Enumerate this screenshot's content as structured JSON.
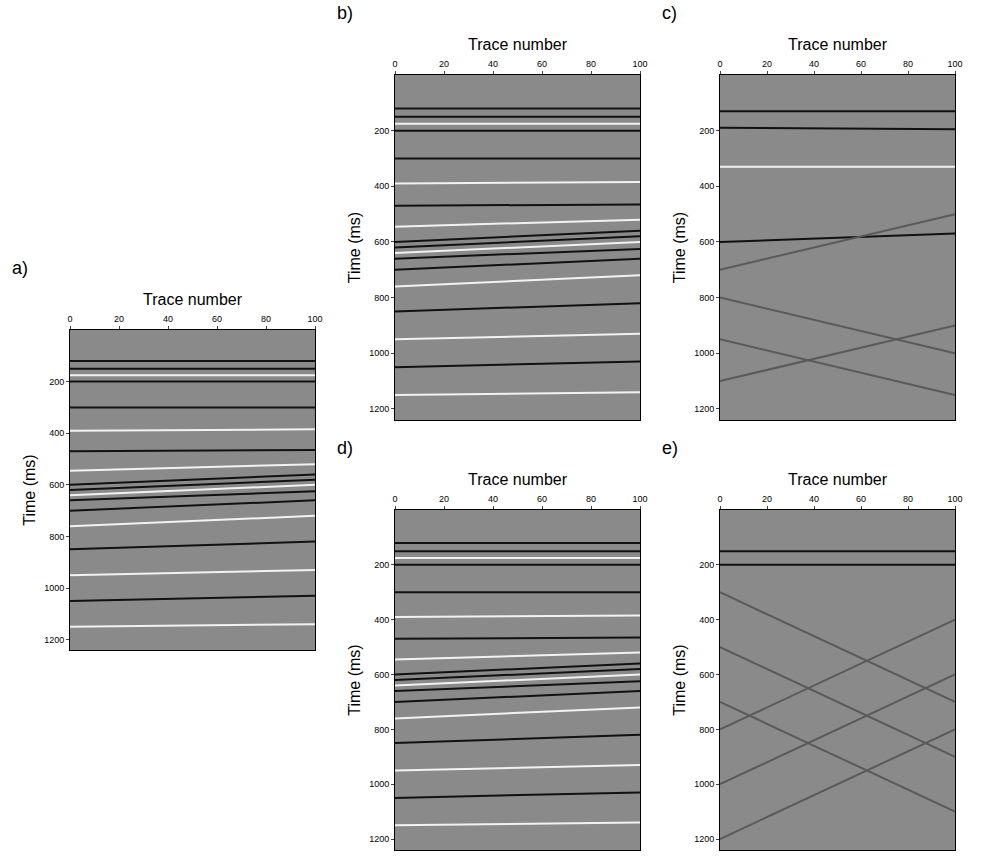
{
  "chart_data": [
    {
      "type": "line",
      "title": "a)",
      "xlabel": "Trace number",
      "ylabel": "Time (ms)",
      "xlim": [
        0,
        100
      ],
      "ylim": [
        1240,
        0
      ],
      "xticks": [
        0,
        20,
        40,
        60,
        80,
        100
      ],
      "yticks": [
        200,
        400,
        600,
        800,
        1000,
        1200
      ],
      "grid": false,
      "x": [
        0,
        100
      ],
      "series": [
        {
          "color": "#111111",
          "values": [
            120,
            120
          ]
        },
        {
          "color": "#111111",
          "values": [
            150,
            150
          ]
        },
        {
          "color": "#f2f2f2",
          "values": [
            175,
            175
          ]
        },
        {
          "color": "#111111",
          "values": [
            200,
            200
          ]
        },
        {
          "color": "#111111",
          "values": [
            300,
            300
          ]
        },
        {
          "color": "#f2f2f2",
          "values": [
            390,
            385
          ]
        },
        {
          "color": "#111111",
          "values": [
            470,
            465
          ]
        },
        {
          "color": "#f2f2f2",
          "values": [
            545,
            520
          ]
        },
        {
          "color": "#111111",
          "values": [
            600,
            560
          ]
        },
        {
          "color": "#111111",
          "values": [
            620,
            580
          ]
        },
        {
          "color": "#f2f2f2",
          "values": [
            640,
            600
          ]
        },
        {
          "color": "#111111",
          "values": [
            660,
            625
          ]
        },
        {
          "color": "#111111",
          "values": [
            700,
            660
          ]
        },
        {
          "color": "#f2f2f2",
          "values": [
            760,
            720
          ]
        },
        {
          "color": "#111111",
          "values": [
            850,
            820
          ]
        },
        {
          "color": "#f2f2f2",
          "values": [
            950,
            930
          ]
        },
        {
          "color": "#111111",
          "values": [
            1050,
            1030
          ]
        },
        {
          "color": "#f2f2f2",
          "values": [
            1150,
            1140
          ]
        }
      ]
    },
    {
      "type": "line",
      "title": "b)",
      "xlabel": "Trace number",
      "ylabel": "Time (ms)",
      "xlim": [
        0,
        100
      ],
      "ylim": [
        1240,
        0
      ],
      "xticks": [
        0,
        20,
        40,
        60,
        80,
        100
      ],
      "yticks": [
        200,
        400,
        600,
        800,
        1000,
        1200
      ],
      "grid": false,
      "x": [
        0,
        100
      ],
      "series": [
        {
          "color": "#111111",
          "values": [
            120,
            120
          ]
        },
        {
          "color": "#111111",
          "values": [
            150,
            150
          ]
        },
        {
          "color": "#f2f2f2",
          "values": [
            175,
            175
          ]
        },
        {
          "color": "#111111",
          "values": [
            200,
            200
          ]
        },
        {
          "color": "#111111",
          "values": [
            300,
            300
          ]
        },
        {
          "color": "#f2f2f2",
          "values": [
            390,
            385
          ]
        },
        {
          "color": "#111111",
          "values": [
            470,
            465
          ]
        },
        {
          "color": "#f2f2f2",
          "values": [
            545,
            520
          ]
        },
        {
          "color": "#111111",
          "values": [
            600,
            560
          ]
        },
        {
          "color": "#111111",
          "values": [
            620,
            580
          ]
        },
        {
          "color": "#f2f2f2",
          "values": [
            640,
            600
          ]
        },
        {
          "color": "#111111",
          "values": [
            660,
            625
          ]
        },
        {
          "color": "#111111",
          "values": [
            700,
            660
          ]
        },
        {
          "color": "#f2f2f2",
          "values": [
            760,
            720
          ]
        },
        {
          "color": "#111111",
          "values": [
            850,
            820
          ]
        },
        {
          "color": "#f2f2f2",
          "values": [
            950,
            930
          ]
        },
        {
          "color": "#111111",
          "values": [
            1050,
            1030
          ]
        },
        {
          "color": "#f2f2f2",
          "values": [
            1150,
            1140
          ]
        }
      ]
    },
    {
      "type": "line",
      "title": "c)",
      "xlabel": "Trace number",
      "ylabel": "Time (ms)",
      "xlim": [
        0,
        100
      ],
      "ylim": [
        1240,
        0
      ],
      "xticks": [
        0,
        20,
        40,
        60,
        80,
        100
      ],
      "yticks": [
        200,
        400,
        600,
        800,
        1000,
        1200
      ],
      "grid": false,
      "x": [
        0,
        100
      ],
      "series": [
        {
          "color": "#111111",
          "values": [
            130,
            130
          ]
        },
        {
          "color": "#111111",
          "values": [
            190,
            195
          ]
        },
        {
          "color": "#f2f2f2",
          "values": [
            330,
            330
          ]
        },
        {
          "color": "#111111",
          "values": [
            600,
            570
          ]
        },
        {
          "color": "#5a5a5a",
          "values": [
            800,
            1000
          ]
        },
        {
          "color": "#5a5a5a",
          "values": [
            950,
            1150
          ]
        },
        {
          "color": "#5a5a5a",
          "values": [
            1100,
            900
          ]
        },
        {
          "color": "#5a5a5a",
          "values": [
            700,
            500
          ]
        }
      ]
    },
    {
      "type": "line",
      "title": "d)",
      "xlabel": "Trace number",
      "ylabel": "Time (ms)",
      "xlim": [
        0,
        100
      ],
      "ylim": [
        1240,
        0
      ],
      "xticks": [
        0,
        20,
        40,
        60,
        80,
        100
      ],
      "yticks": [
        200,
        400,
        600,
        800,
        1000,
        1200
      ],
      "grid": false,
      "x": [
        0,
        100
      ],
      "series": [
        {
          "color": "#111111",
          "values": [
            120,
            120
          ]
        },
        {
          "color": "#111111",
          "values": [
            150,
            150
          ]
        },
        {
          "color": "#f2f2f2",
          "values": [
            175,
            175
          ]
        },
        {
          "color": "#111111",
          "values": [
            200,
            200
          ]
        },
        {
          "color": "#111111",
          "values": [
            300,
            300
          ]
        },
        {
          "color": "#f2f2f2",
          "values": [
            390,
            385
          ]
        },
        {
          "color": "#111111",
          "values": [
            470,
            465
          ]
        },
        {
          "color": "#f2f2f2",
          "values": [
            545,
            520
          ]
        },
        {
          "color": "#111111",
          "values": [
            600,
            560
          ]
        },
        {
          "color": "#111111",
          "values": [
            620,
            580
          ]
        },
        {
          "color": "#f2f2f2",
          "values": [
            640,
            600
          ]
        },
        {
          "color": "#111111",
          "values": [
            660,
            625
          ]
        },
        {
          "color": "#111111",
          "values": [
            700,
            660
          ]
        },
        {
          "color": "#f2f2f2",
          "values": [
            760,
            720
          ]
        },
        {
          "color": "#111111",
          "values": [
            850,
            820
          ]
        },
        {
          "color": "#f2f2f2",
          "values": [
            950,
            930
          ]
        },
        {
          "color": "#111111",
          "values": [
            1050,
            1030
          ]
        },
        {
          "color": "#f2f2f2",
          "values": [
            1150,
            1140
          ]
        }
      ]
    },
    {
      "type": "line",
      "title": "e)",
      "xlabel": "Trace number",
      "ylabel": "Time (ms)",
      "xlim": [
        0,
        100
      ],
      "ylim": [
        1240,
        0
      ],
      "xticks": [
        0,
        20,
        40,
        60,
        80,
        100
      ],
      "yticks": [
        200,
        400,
        600,
        800,
        1000,
        1200
      ],
      "grid": false,
      "x": [
        0,
        100
      ],
      "series": [
        {
          "color": "#111111",
          "values": [
            150,
            150
          ]
        },
        {
          "color": "#111111",
          "values": [
            200,
            200
          ]
        },
        {
          "color": "#5a5a5a",
          "values": [
            300,
            700
          ]
        },
        {
          "color": "#5a5a5a",
          "values": [
            500,
            900
          ]
        },
        {
          "color": "#5a5a5a",
          "values": [
            700,
            1100
          ]
        },
        {
          "color": "#5a5a5a",
          "values": [
            1000,
            600
          ]
        },
        {
          "color": "#5a5a5a",
          "values": [
            1200,
            800
          ]
        },
        {
          "color": "#5a5a5a",
          "values": [
            800,
            400
          ]
        }
      ]
    }
  ]
}
